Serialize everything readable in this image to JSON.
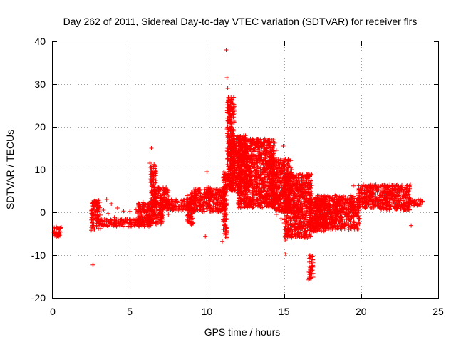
{
  "chart_data": {
    "type": "scatter",
    "title": "Day 262 of 2011, Sidereal Day-to-day VTEC variation (SDTVAR) for receiver flrs",
    "xlabel": "GPS time / hours",
    "ylabel": "SDTVAR / TECUs",
    "xlim": [
      0,
      25
    ],
    "ylim": [
      -20,
      40
    ],
    "xticks": [
      0,
      5,
      10,
      15,
      20,
      25
    ],
    "yticks": [
      -20,
      -10,
      0,
      10,
      20,
      30,
      40
    ],
    "xtick_labels": [
      "0",
      "5",
      "10",
      "15",
      "20",
      "25"
    ],
    "ytick_labels": [
      "-20",
      "-10",
      "0",
      "10",
      "20",
      "30",
      "40"
    ],
    "grid": true,
    "marker": "+",
    "color": "#ff0000",
    "series": [
      {
        "name": "SDTVAR",
        "points": [
          [
            0.0,
            -4.6
          ],
          [
            0.1,
            -4.8
          ],
          [
            0.2,
            -5.2
          ],
          [
            0.3,
            -5.5
          ],
          [
            0.35,
            -5.8
          ],
          [
            0.4,
            -5.2
          ],
          [
            0.45,
            -4.5
          ],
          [
            0.5,
            -3.8
          ],
          [
            0.55,
            -3.5
          ],
          [
            2.6,
            -12.3
          ],
          [
            2.5,
            -4.2
          ],
          [
            2.5,
            -3.5
          ],
          [
            2.55,
            -2.5
          ],
          [
            2.6,
            -1.5
          ],
          [
            2.55,
            0.5
          ],
          [
            2.6,
            1.5
          ],
          [
            2.7,
            2.5
          ],
          [
            2.85,
            2.3
          ],
          [
            3.0,
            -2.2
          ],
          [
            3.2,
            -2.5
          ],
          [
            3.5,
            -2.8
          ],
          [
            4.0,
            -3.0
          ],
          [
            4.5,
            -2.9
          ],
          [
            5.0,
            -2.6
          ],
          [
            5.5,
            -2.2
          ],
          [
            6.0,
            -1.6
          ],
          [
            6.3,
            -1.2
          ],
          [
            3.0,
            1.4
          ],
          [
            3.3,
            0.5
          ],
          [
            3.6,
            -0.3
          ],
          [
            4.0,
            -1.2
          ],
          [
            4.4,
            -1.8
          ],
          [
            4.8,
            -2.2
          ],
          [
            5.2,
            -2.0
          ],
          [
            5.6,
            -1.5
          ],
          [
            3.5,
            3.0
          ],
          [
            3.8,
            2.0
          ],
          [
            4.2,
            1.0
          ],
          [
            4.6,
            0.3
          ],
          [
            5.0,
            0.2
          ],
          [
            5.4,
            0.6
          ],
          [
            5.8,
            1.3
          ],
          [
            6.2,
            1.8
          ],
          [
            6.4,
            2.3
          ],
          [
            6.4,
            15.0
          ],
          [
            6.3,
            11.5
          ],
          [
            6.35,
            10.5
          ],
          [
            6.4,
            9.5
          ],
          [
            6.45,
            8.5
          ],
          [
            6.5,
            7.5
          ],
          [
            6.55,
            6.5
          ],
          [
            6.6,
            5.8
          ],
          [
            6.7,
            4.5
          ],
          [
            6.8,
            3.5
          ],
          [
            7.0,
            5.5
          ],
          [
            7.2,
            5.0
          ],
          [
            7.4,
            4.6
          ],
          [
            7.4,
            3.0
          ],
          [
            7.4,
            1.5
          ],
          [
            7.0,
            0.0
          ],
          [
            7.5,
            -0.5
          ],
          [
            8.0,
            0.8
          ],
          [
            8.5,
            1.5
          ],
          [
            8.9,
            1.8
          ],
          [
            8.8,
            -2.3
          ],
          [
            9.0,
            -3.0
          ],
          [
            8.9,
            -1.5
          ],
          [
            8.9,
            4.2
          ],
          [
            9.0,
            4.7
          ],
          [
            9.2,
            3.0
          ],
          [
            9.5,
            2.0
          ],
          [
            9.8,
            2.3
          ],
          [
            9.9,
            -5.6
          ],
          [
            10.0,
            9.5
          ],
          [
            10.0,
            5.8
          ],
          [
            10.1,
            5.0
          ],
          [
            10.2,
            3.3
          ],
          [
            10.5,
            3.5
          ],
          [
            10.8,
            4.2
          ],
          [
            11.0,
            5.0
          ],
          [
            11.0,
            -6.8
          ],
          [
            11.1,
            -5.0
          ],
          [
            11.2,
            -3.0
          ],
          [
            11.1,
            -1.0
          ],
          [
            11.2,
            0.5
          ],
          [
            11.1,
            2.0
          ],
          [
            11.2,
            4.0
          ],
          [
            11.15,
            6.0
          ],
          [
            11.2,
            8.0
          ],
          [
            11.1,
            9.5
          ],
          [
            11.25,
            38.0
          ],
          [
            11.3,
            31.5
          ],
          [
            11.35,
            29.0
          ],
          [
            11.4,
            26.5
          ],
          [
            11.45,
            24.0
          ],
          [
            11.5,
            21.0
          ],
          [
            11.6,
            18.5
          ],
          [
            11.8,
            16.5
          ],
          [
            12.0,
            17.0
          ],
          [
            12.5,
            17.3
          ],
          [
            13.0,
            17.0
          ],
          [
            13.5,
            16.5
          ],
          [
            14.0,
            15.5
          ],
          [
            14.5,
            14.5
          ],
          [
            14.95,
            15.5
          ],
          [
            15.0,
            12.5
          ],
          [
            15.5,
            10.0
          ],
          [
            16.0,
            9.0
          ],
          [
            16.5,
            8.5
          ],
          [
            12.0,
            4.5
          ],
          [
            12.5,
            4.3
          ],
          [
            13.0,
            4.0
          ],
          [
            13.5,
            3.5
          ],
          [
            14.0,
            3.0
          ],
          [
            14.5,
            2.5
          ],
          [
            15.0,
            1.5
          ],
          [
            15.5,
            1.0
          ],
          [
            16.0,
            0.5
          ],
          [
            16.5,
            0.0
          ],
          [
            14.5,
            -0.5
          ],
          [
            14.8,
            -1.5
          ],
          [
            15.0,
            -2.5
          ],
          [
            15.1,
            -9.7
          ],
          [
            15.1,
            -6.5
          ],
          [
            15.2,
            -5.0
          ],
          [
            15.3,
            -4.0
          ],
          [
            15.5,
            -3.0
          ],
          [
            15.8,
            -2.0
          ],
          [
            16.6,
            -15.8
          ],
          [
            16.65,
            -14.5
          ],
          [
            16.7,
            -13.5
          ],
          [
            16.75,
            -12.5
          ],
          [
            16.8,
            -11.5
          ],
          [
            16.85,
            -10.2
          ],
          [
            16.8,
            1.0
          ],
          [
            17.0,
            2.5
          ],
          [
            17.5,
            2.0
          ],
          [
            18.0,
            1.5
          ],
          [
            18.5,
            2.0
          ],
          [
            19.0,
            2.8
          ],
          [
            19.5,
            2.5
          ],
          [
            19.9,
            2.0
          ],
          [
            17.0,
            -3.5
          ],
          [
            17.2,
            -2.5
          ],
          [
            17.5,
            -1.5
          ],
          [
            18.0,
            -0.5
          ],
          [
            18.35,
            -4.0
          ],
          [
            18.5,
            -1.0
          ],
          [
            19.0,
            0.0
          ],
          [
            19.5,
            -1.0
          ],
          [
            19.6,
            -3.5
          ],
          [
            19.5,
            6.2
          ],
          [
            19.9,
            3.5
          ],
          [
            20.0,
            4.5
          ],
          [
            20.5,
            5.0
          ],
          [
            21.0,
            5.5
          ],
          [
            21.5,
            6.3
          ],
          [
            22.0,
            6.0
          ],
          [
            22.5,
            4.8
          ],
          [
            23.0,
            3.5
          ],
          [
            20.5,
            2.0
          ],
          [
            21.0,
            3.0
          ],
          [
            21.5,
            4.0
          ],
          [
            22.0,
            3.2
          ],
          [
            22.5,
            1.5
          ],
          [
            23.0,
            0.5
          ],
          [
            23.25,
            -3.1
          ],
          [
            23.5,
            2.4
          ],
          [
            23.8,
            2.5
          ],
          [
            24.0,
            2.6
          ]
        ],
        "bands": [
          [
            0.0,
            0.55,
            -5.8,
            -3.3
          ],
          [
            2.5,
            3.1,
            -4.0,
            2.8
          ],
          [
            3.0,
            6.5,
            -3.3,
            -1.5
          ],
          [
            5.5,
            7.2,
            -2.8,
            2.5
          ],
          [
            6.35,
            6.7,
            2.0,
            11.5
          ],
          [
            6.6,
            7.5,
            1.0,
            6.0
          ],
          [
            7.2,
            9.0,
            0.5,
            3.0
          ],
          [
            8.7,
            9.2,
            -2.8,
            4.0
          ],
          [
            9.0,
            11.2,
            0.0,
            5.5
          ],
          [
            10.0,
            10.25,
            3.0,
            6.0
          ],
          [
            11.05,
            11.3,
            -6.0,
            9.5
          ],
          [
            11.3,
            11.8,
            5.0,
            27.0
          ],
          [
            11.5,
            12.6,
            5.0,
            18.0
          ],
          [
            12.0,
            14.4,
            1.0,
            17.2
          ],
          [
            14.2,
            15.5,
            0.0,
            12.5
          ],
          [
            15.0,
            16.8,
            -6.0,
            9.0
          ],
          [
            16.6,
            16.9,
            -15.5,
            -10.0
          ],
          [
            16.7,
            17.8,
            -4.5,
            3.0
          ],
          [
            17.0,
            19.9,
            -4.0,
            4.0
          ],
          [
            19.8,
            21.2,
            1.0,
            6.5
          ],
          [
            21.2,
            23.2,
            0.5,
            6.5
          ],
          [
            23.0,
            24.0,
            1.5,
            3.0
          ]
        ]
      }
    ]
  }
}
